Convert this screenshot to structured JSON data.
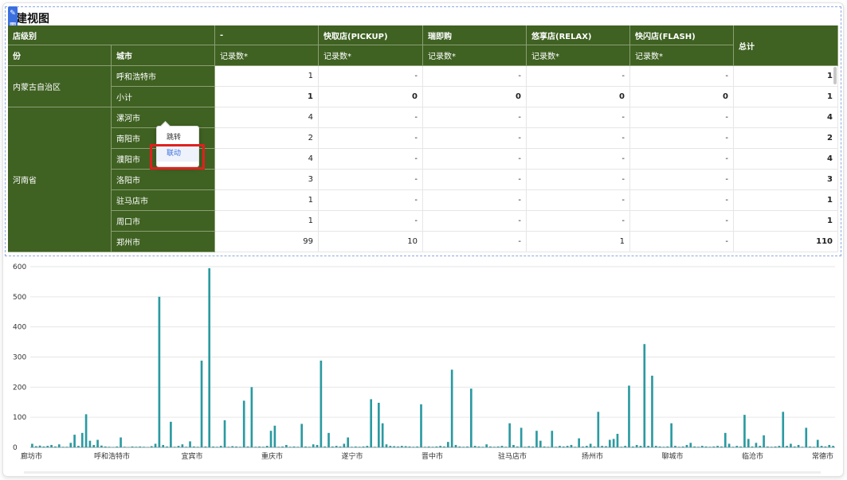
{
  "widget": {
    "title": "建视图"
  },
  "toolbar": {
    "icons": [
      "edit-icon",
      "table-icon",
      "expand-icon",
      "export-icon",
      "settings-icon"
    ]
  },
  "pivot": {
    "corner_top": "店级别",
    "corner_province": "份",
    "corner_city": "城市",
    "columns": [
      {
        "name": "-",
        "measure": "记录数*"
      },
      {
        "name": "快取店(PICKUP)",
        "measure": "记录数*"
      },
      {
        "name": "瑞即购",
        "measure": "记录数*"
      },
      {
        "name": "悠享店(RELAX)",
        "measure": "记录数*"
      },
      {
        "name": "快闪店(FLASH)",
        "measure": "记录数*"
      }
    ],
    "total_label": "总计",
    "groups": [
      {
        "province": "内蒙古自治区",
        "rows": [
          {
            "city": "呼和浩特市",
            "subtotal": false,
            "values": [
              "1",
              "-",
              "-",
              "-",
              "-",
              "1"
            ]
          },
          {
            "city": "小计",
            "subtotal": true,
            "values": [
              "1",
              "0",
              "0",
              "0",
              "0",
              "1"
            ]
          }
        ]
      },
      {
        "province": "河南省",
        "rows": [
          {
            "city": "漯河市",
            "subtotal": false,
            "values": [
              "4",
              "-",
              "-",
              "-",
              "-",
              "4"
            ]
          },
          {
            "city": "南阳市",
            "subtotal": false,
            "values": [
              "2",
              "-",
              "-",
              "-",
              "-",
              "2"
            ]
          },
          {
            "city": "濮阳市",
            "subtotal": false,
            "values": [
              "4",
              "-",
              "-",
              "-",
              "-",
              "4"
            ]
          },
          {
            "city": "洛阳市",
            "subtotal": false,
            "values": [
              "3",
              "-",
              "-",
              "-",
              "-",
              "3"
            ]
          },
          {
            "city": "驻马店市",
            "subtotal": false,
            "values": [
              "1",
              "-",
              "-",
              "-",
              "-",
              "1"
            ]
          },
          {
            "city": "周口市",
            "subtotal": false,
            "values": [
              "1",
              "-",
              "-",
              "-",
              "-",
              "1"
            ]
          },
          {
            "city": "郑州市",
            "subtotal": false,
            "values": [
              "99",
              "10",
              "-",
              "1",
              "-",
              "110"
            ]
          }
        ]
      }
    ]
  },
  "context_menu": {
    "items": [
      "跳转",
      "联动"
    ]
  },
  "colors": {
    "header_green": "#3f6122",
    "bar_teal": "#2a9aa1",
    "accent_blue": "#3b6fe0",
    "highlight_red": "#e02020"
  },
  "chart_data": {
    "type": "bar",
    "x_tick_labels": [
      "廊坊市",
      "呼和浩特市",
      "宜宾市",
      "重庆市",
      "遂宁市",
      "晋中市",
      "驻马店市",
      "扬州市",
      "聊城市",
      "临沧市",
      "常德市"
    ],
    "ylim": [
      0,
      600
    ],
    "yticks": [
      0,
      100,
      200,
      300,
      400,
      500,
      600
    ],
    "grid": true,
    "values": [
      12,
      4,
      6,
      3,
      5,
      8,
      3,
      10,
      2,
      2,
      15,
      42,
      5,
      48,
      110,
      22,
      8,
      25,
      6,
      3,
      2,
      1,
      3,
      33,
      2,
      1,
      3,
      2,
      3,
      2,
      1,
      4,
      12,
      500,
      8,
      3,
      85,
      2,
      5,
      10,
      2,
      20,
      3,
      2,
      288,
      3,
      595,
      3,
      2,
      5,
      90,
      2,
      4,
      3,
      2,
      155,
      3,
      200,
      2,
      3,
      2,
      5,
      55,
      72,
      2,
      3,
      8,
      2,
      3,
      2,
      78,
      3,
      2,
      10,
      8,
      288,
      3,
      48,
      3,
      5,
      3,
      12,
      33,
      2,
      3,
      2,
      3,
      5,
      160,
      2,
      148,
      80,
      10,
      5,
      4,
      3,
      5,
      4,
      3,
      2,
      3,
      143,
      2,
      3,
      2,
      3,
      5,
      3,
      18,
      258,
      8,
      3,
      2,
      3,
      195,
      5,
      3,
      2,
      10,
      3,
      2,
      3,
      5,
      2,
      80,
      8,
      3,
      65,
      2,
      4,
      3,
      55,
      22,
      3,
      2,
      55,
      2,
      5,
      3,
      5,
      8,
      2,
      30,
      3,
      5,
      12,
      3,
      118,
      5,
      4,
      25,
      28,
      45,
      2,
      5,
      205,
      3,
      8,
      5,
      343,
      5,
      238,
      5,
      3,
      2,
      3,
      80,
      5,
      2,
      3,
      8,
      15,
      3,
      2,
      5,
      3,
      2,
      3,
      5,
      3,
      48,
      12,
      2,
      5,
      3,
      108,
      28,
      3,
      15,
      5,
      40,
      3,
      2,
      3,
      5,
      118,
      5,
      12,
      3,
      8,
      2,
      65,
      3,
      2,
      25,
      5,
      3,
      8,
      5
    ]
  }
}
